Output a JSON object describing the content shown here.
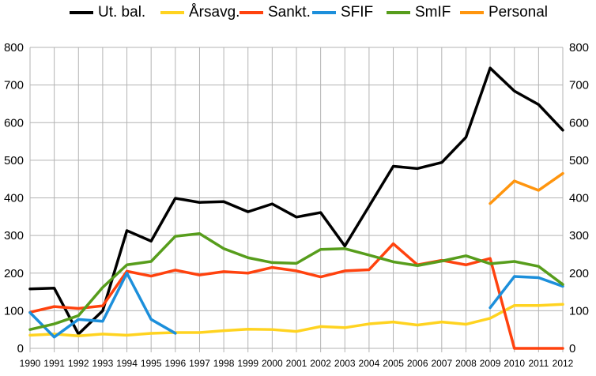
{
  "chart_data": {
    "type": "line",
    "title": "",
    "xlabel": "",
    "ylabel": "",
    "ylim": [
      0,
      800
    ],
    "yticks": [
      0,
      100,
      200,
      300,
      400,
      500,
      600,
      700,
      800
    ],
    "grid": true,
    "legend_position": "top",
    "secondary_y_axis": true,
    "x": [
      1990,
      1991,
      1992,
      1993,
      1994,
      1995,
      1996,
      1997,
      1998,
      1999,
      2000,
      2001,
      2002,
      2003,
      2004,
      2005,
      2006,
      2007,
      2008,
      2009,
      2010,
      2011,
      2012
    ],
    "series": [
      {
        "name": "Ut. bal.",
        "color": "#000000",
        "values": [
          158,
          160,
          38,
          100,
          313,
          285,
          399,
          388,
          390,
          363,
          384,
          349,
          361,
          272,
          378,
          484,
          478,
          494,
          561,
          745,
          684,
          648,
          580
        ]
      },
      {
        "name": "Årsavg.",
        "color": "#ffd320",
        "values": [
          35,
          38,
          33,
          38,
          35,
          40,
          42,
          42,
          47,
          51,
          50,
          45,
          58,
          55,
          65,
          70,
          62,
          70,
          64,
          80,
          114,
          114,
          117
        ]
      },
      {
        "name": "Sankt.",
        "color": "#ff420e",
        "values": [
          96,
          111,
          106,
          113,
          205,
          192,
          208,
          195,
          204,
          200,
          215,
          206,
          190,
          206,
          209,
          278,
          222,
          234,
          222,
          239,
          0,
          0,
          0
        ]
      },
      {
        "name": "SFIF",
        "color": "#1c8fdb",
        "values": [
          95,
          30,
          77,
          72,
          200,
          77,
          40,
          null,
          null,
          null,
          null,
          null,
          null,
          null,
          null,
          null,
          null,
          null,
          null,
          108,
          191,
          188,
          165
        ]
      },
      {
        "name": "SmIF",
        "color": "#579d1c",
        "values": [
          50,
          65,
          87,
          162,
          222,
          231,
          298,
          305,
          265,
          241,
          228,
          226,
          263,
          265,
          248,
          230,
          220,
          232,
          246,
          225,
          231,
          218,
          170
        ]
      },
      {
        "name": "Personal",
        "color": "#ff950e",
        "values": [
          null,
          null,
          null,
          null,
          null,
          null,
          null,
          null,
          null,
          null,
          null,
          null,
          null,
          null,
          null,
          null,
          null,
          null,
          null,
          385,
          445,
          420,
          465
        ]
      }
    ]
  }
}
